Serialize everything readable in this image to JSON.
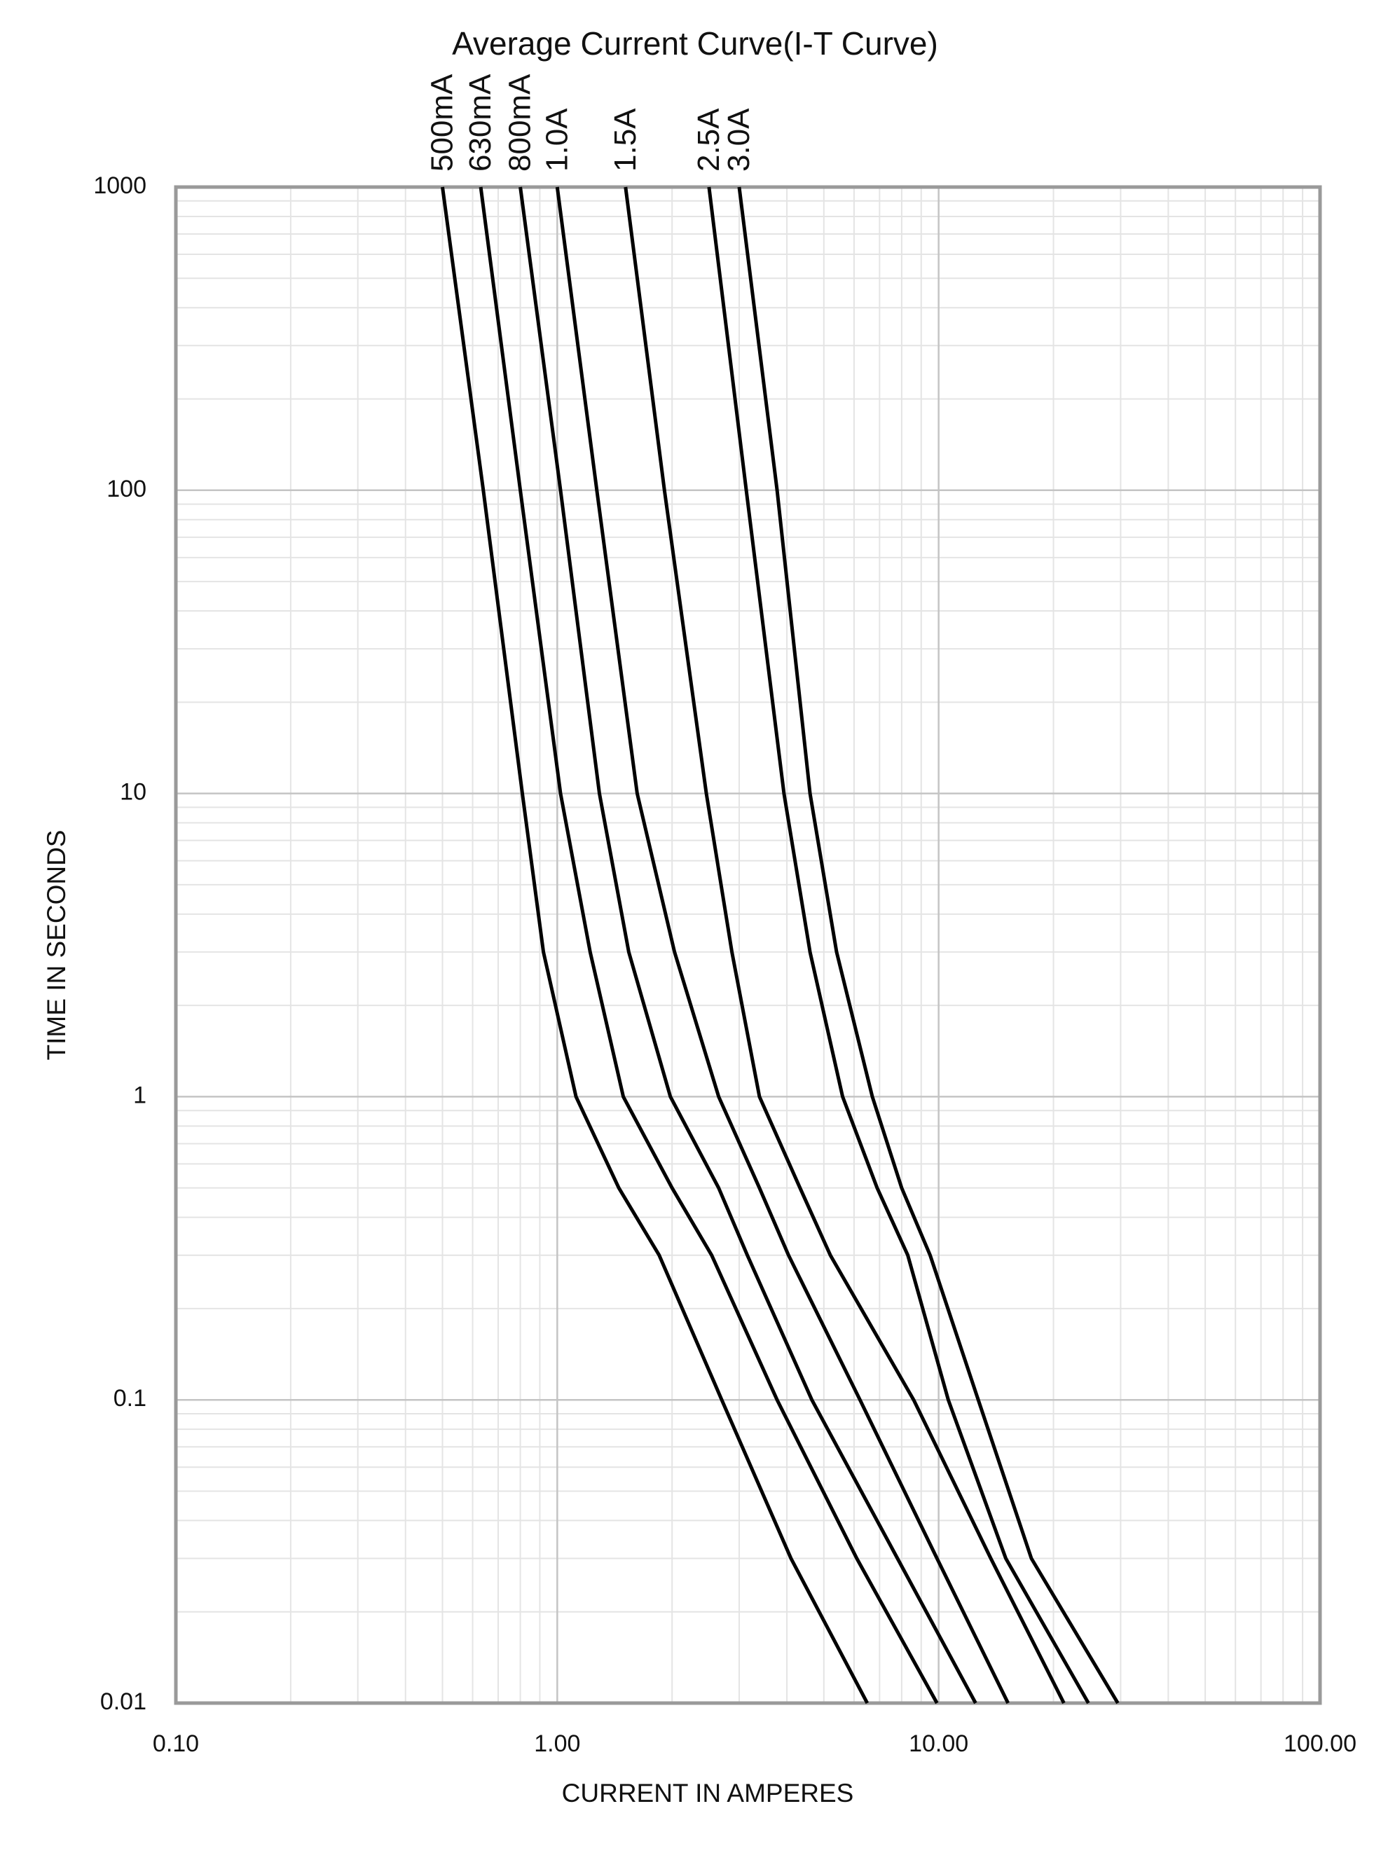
{
  "chart_data": {
    "type": "line",
    "title": "Average Current Curve(I-T Curve)",
    "x_label": "CURRENT IN AMPERES",
    "y_label": "TIME IN SECONDS",
    "log_x": true,
    "log_y": true,
    "grid": true,
    "xlim": [
      0.1,
      100
    ],
    "ylim": [
      0.01,
      1000
    ],
    "xticks": [
      {
        "value": 0.1,
        "label": "0.10"
      },
      {
        "value": 1,
        "label": "1.00"
      },
      {
        "value": 10,
        "label": "10.00"
      },
      {
        "value": 100,
        "label": "100.00"
      }
    ],
    "yticks": [
      1000,
      100,
      10,
      1,
      0.1,
      0.01
    ],
    "series": [
      {
        "name": "500mA",
        "color": "#000000",
        "x": [
          0.5,
          0.64,
          0.81,
          0.92,
          1.12,
          1.45,
          1.85,
          2.7,
          4.1,
          6.5
        ],
        "values": [
          1000,
          100,
          10,
          3,
          1,
          0.5,
          0.3,
          0.1,
          0.03,
          0.01
        ]
      },
      {
        "name": "630mA",
        "color": "#000000",
        "x": [
          0.63,
          0.8,
          1.02,
          1.22,
          1.49,
          2.0,
          2.54,
          3.77,
          6.1,
          9.9
        ],
        "values": [
          1000,
          100,
          10,
          3,
          1,
          0.5,
          0.3,
          0.1,
          0.03,
          0.01
        ]
      },
      {
        "name": "800mA",
        "color": "#000000",
        "x": [
          0.8,
          1.02,
          1.29,
          1.54,
          1.98,
          2.65,
          3.15,
          4.65,
          7.8,
          12.5
        ],
        "values": [
          1000,
          100,
          10,
          3,
          1,
          0.5,
          0.3,
          0.1,
          0.03,
          0.01
        ]
      },
      {
        "name": "1.0A",
        "color": "#000000",
        "x": [
          1.0,
          1.27,
          1.62,
          2.03,
          2.65,
          3.39,
          4.04,
          6.22,
          9.9,
          15.2
        ],
        "values": [
          1000,
          100,
          10,
          3,
          1,
          0.5,
          0.3,
          0.1,
          0.03,
          0.01
        ]
      },
      {
        "name": "1.5A",
        "color": "#000000",
        "x": [
          1.51,
          1.91,
          2.46,
          2.87,
          3.39,
          4.33,
          5.2,
          8.6,
          13.7,
          21.3
        ],
        "values": [
          1000,
          100,
          10,
          3,
          1,
          0.5,
          0.3,
          0.1,
          0.03,
          0.01
        ]
      },
      {
        "name": "2.5A",
        "color": "#000000",
        "x": [
          2.5,
          3.13,
          3.93,
          4.6,
          5.6,
          6.9,
          8.3,
          10.6,
          15.0,
          24.7
        ],
        "values": [
          1000,
          100,
          10,
          3,
          1,
          0.5,
          0.3,
          0.1,
          0.03,
          0.01
        ]
      },
      {
        "name": "3.0A",
        "color": "#000000",
        "x": [
          3.0,
          3.77,
          4.6,
          5.4,
          6.7,
          8.0,
          9.5,
          12.7,
          17.5,
          29.5
        ],
        "values": [
          1000,
          100,
          10,
          3,
          1,
          0.5,
          0.3,
          0.1,
          0.03,
          0.01
        ]
      }
    ]
  }
}
